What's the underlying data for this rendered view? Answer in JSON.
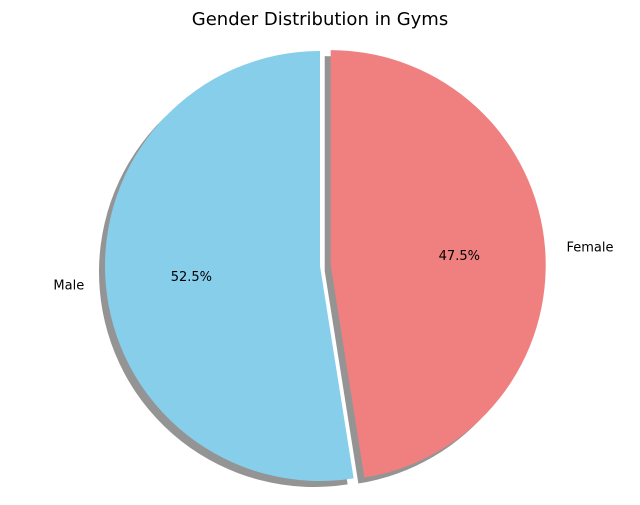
{
  "chart_data": {
    "type": "pie",
    "title": "Gender Distribution in Gyms",
    "categories": [
      "Male",
      "Female"
    ],
    "values": [
      52.5,
      47.5
    ],
    "percent_labels": [
      "52.5%",
      "47.5%"
    ],
    "colors": [
      "#87ceeb",
      "#f08080"
    ],
    "explode": [
      0,
      0.05
    ],
    "start_angle_deg": 90,
    "shadow": true,
    "legend": "none"
  }
}
